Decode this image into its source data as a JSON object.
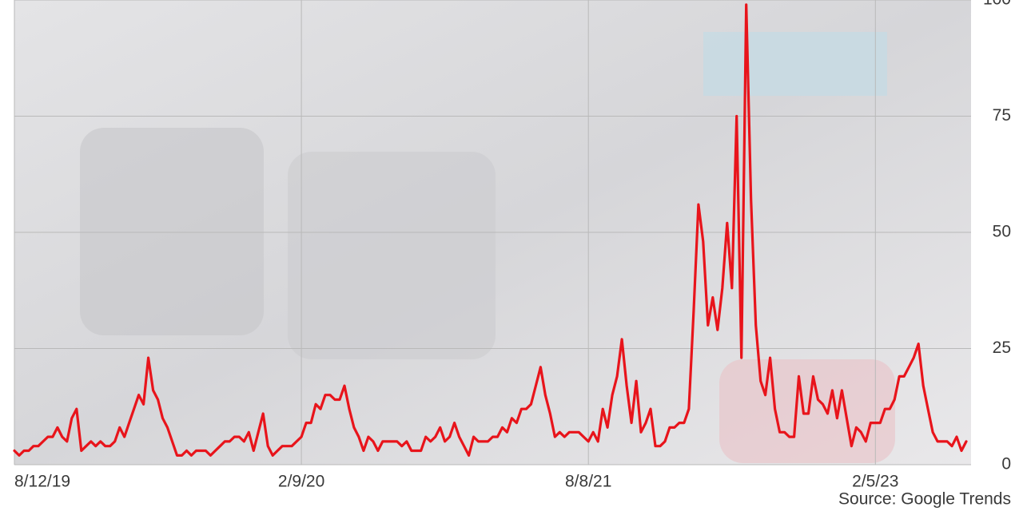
{
  "chart_data": {
    "type": "line",
    "source": "Source: Google Trends",
    "categories": [
      "8/12/19",
      null,
      null,
      null,
      null,
      null,
      null,
      null,
      null,
      null,
      null,
      null,
      null,
      null,
      null,
      null,
      null,
      null,
      null,
      null,
      null,
      null,
      null,
      null,
      null,
      null,
      null,
      null,
      null,
      null,
      null,
      null,
      null,
      null,
      null,
      null,
      null,
      null,
      null,
      null,
      null,
      null,
      null,
      null,
      null,
      null,
      null,
      null,
      null,
      null,
      null,
      null,
      null,
      null,
      null,
      null,
      null,
      null,
      null,
      null,
      "2/9/20",
      null,
      null,
      null,
      null,
      null,
      null,
      null,
      null,
      null,
      null,
      null,
      null,
      null,
      null,
      null,
      null,
      null,
      null,
      null,
      null,
      null,
      null,
      null,
      null,
      null,
      null,
      null,
      null,
      null,
      null,
      null,
      null,
      null,
      null,
      null,
      null,
      null,
      null,
      null,
      null,
      null,
      null,
      null,
      null,
      null,
      null,
      null,
      null,
      null,
      null,
      null,
      null,
      null,
      null,
      null,
      null,
      null,
      null,
      null,
      "8/8/21",
      null,
      null,
      null,
      null,
      null,
      null,
      null,
      null,
      null,
      null,
      null,
      null,
      null,
      null,
      null,
      null,
      null,
      null,
      null,
      null,
      null,
      null,
      null,
      null,
      null,
      null,
      null,
      null,
      null,
      null,
      null,
      null,
      null,
      null,
      null,
      null,
      null,
      null,
      null,
      null,
      null,
      null,
      null,
      null,
      null,
      null,
      null,
      null,
      null,
      null,
      null,
      null,
      null,
      null,
      null,
      null,
      null,
      null,
      null,
      "2/5/23",
      null,
      null,
      null,
      null,
      null,
      null,
      null,
      null,
      null,
      null,
      null,
      null,
      null,
      null,
      null,
      null,
      null,
      null,
      null
    ],
    "values": [
      3,
      2,
      3,
      3,
      4,
      4,
      5,
      6,
      6,
      8,
      6,
      5,
      10,
      12,
      3,
      4,
      5,
      4,
      5,
      4,
      4,
      5,
      8,
      6,
      9,
      12,
      15,
      13,
      23,
      16,
      14,
      10,
      8,
      5,
      2,
      2,
      3,
      2,
      3,
      3,
      3,
      2,
      3,
      4,
      5,
      5,
      6,
      6,
      5,
      7,
      3,
      7,
      11,
      4,
      2,
      3,
      4,
      4,
      4,
      5,
      6,
      9,
      9,
      13,
      12,
      15,
      15,
      14,
      14,
      17,
      12,
      8,
      6,
      3,
      6,
      5,
      3,
      5,
      5,
      5,
      5,
      4,
      5,
      3,
      3,
      3,
      6,
      5,
      6,
      8,
      5,
      6,
      9,
      6,
      4,
      2,
      6,
      5,
      5,
      5,
      6,
      6,
      8,
      7,
      10,
      9,
      12,
      12,
      13,
      17,
      21,
      15,
      11,
      6,
      7,
      6,
      7,
      7,
      7,
      6,
      5,
      7,
      5,
      12,
      8,
      15,
      19,
      27,
      17,
      9,
      18,
      7,
      9,
      12,
      4,
      4,
      5,
      8,
      8,
      9,
      9,
      12,
      33,
      56,
      48,
      30,
      36,
      29,
      38,
      52,
      38,
      75,
      23,
      99,
      57,
      30,
      18,
      15,
      23,
      12,
      7,
      7,
      6,
      6,
      19,
      11,
      11,
      19,
      14,
      13,
      11,
      16,
      10,
      16,
      10,
      4,
      8,
      7,
      5,
      9,
      9,
      9,
      12,
      12,
      14,
      19,
      19,
      21,
      23,
      26,
      17,
      12,
      7,
      5,
      5,
      5,
      4,
      6,
      3,
      5
    ],
    "color": "#e8141b",
    "ylim": [
      0,
      100
    ],
    "yticks": [
      0,
      25,
      50,
      75,
      100
    ],
    "grid": true
  }
}
